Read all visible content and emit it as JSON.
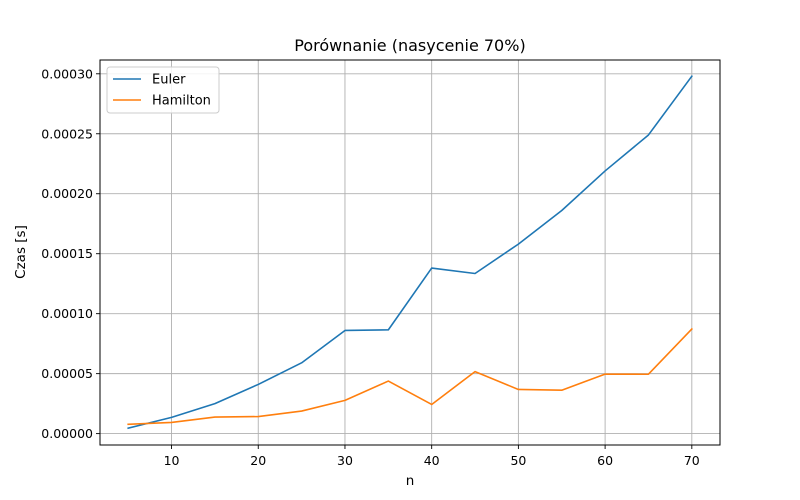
{
  "chart_data": {
    "type": "line",
    "title": "Porównanie (nasycenie 70%)",
    "xlabel": "n",
    "ylabel": "Czas [s]",
    "xlim": [
      1.75,
      73.25
    ],
    "ylim": [
      -9.5e-06,
      0.0003115
    ],
    "grid": true,
    "legend_position": "top-left",
    "xticks": [
      10,
      20,
      30,
      40,
      50,
      60,
      70
    ],
    "xtick_labels": [
      "10",
      "20",
      "30",
      "40",
      "50",
      "60",
      "70"
    ],
    "yticks": [
      0,
      5e-05,
      0.0001,
      0.00015,
      0.0002,
      0.00025,
      0.0003
    ],
    "ytick_labels": [
      "0.00000",
      "0.00005",
      "0.00010",
      "0.00015",
      "0.00020",
      "0.00025",
      "0.00030"
    ],
    "x": [
      5,
      10,
      15,
      20,
      25,
      30,
      35,
      40,
      45,
      50,
      55,
      60,
      65,
      70
    ],
    "series": [
      {
        "name": "Euler",
        "color": "#1f77b4",
        "values": [
          4.5e-06,
          1.35e-05,
          2.5e-05,
          4.1e-05,
          5.9e-05,
          8.6e-05,
          8.65e-05,
          0.000138,
          0.0001335,
          0.000158,
          0.000186,
          0.000219,
          0.000249,
          0.000298
        ]
      },
      {
        "name": "Hamilton",
        "color": "#ff7f0e",
        "values": [
          7.8e-06,
          9.3e-06,
          1.38e-05,
          1.42e-05,
          1.88e-05,
          2.77e-05,
          4.38e-05,
          2.43e-05,
          5.17e-05,
          3.68e-05,
          3.62e-05,
          4.96e-05,
          4.95e-05,
          8.72e-05
        ]
      }
    ]
  }
}
